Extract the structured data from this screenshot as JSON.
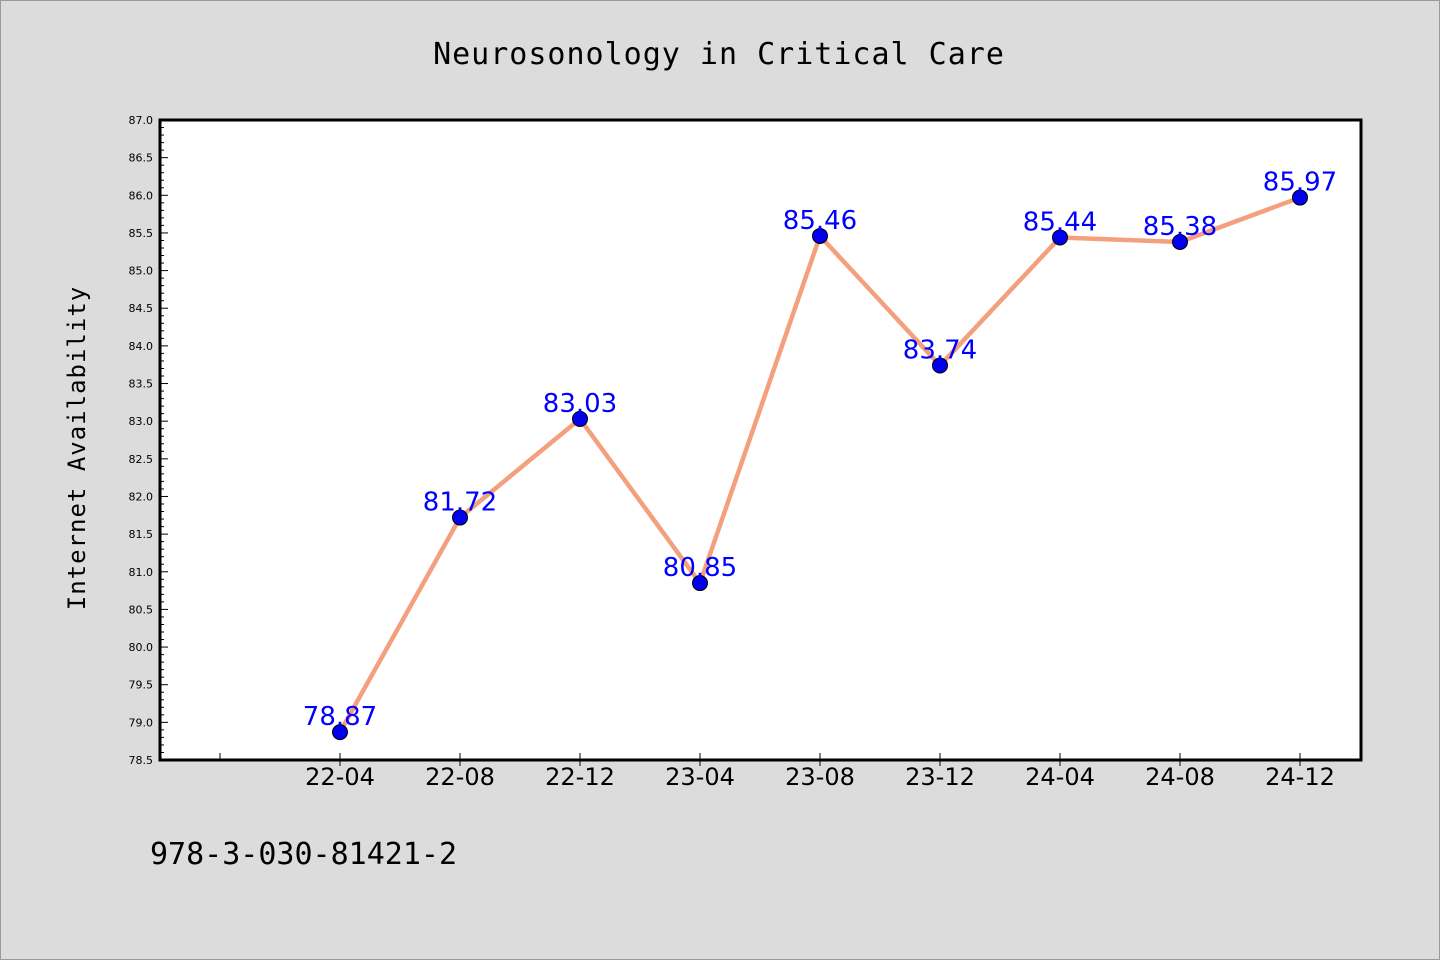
{
  "chart_data": {
    "type": "line",
    "title": "Neurosonology in Critical Care",
    "xlabel": "",
    "ylabel": "Internet Availability",
    "categories": [
      "22-04",
      "22-08",
      "22-12",
      "23-04",
      "23-08",
      "23-12",
      "24-04",
      "24-08",
      "24-12"
    ],
    "series": [
      {
        "values": [
          78.87,
          81.72,
          83.03,
          80.85,
          85.46,
          83.74,
          85.44,
          85.38,
          85.97
        ],
        "line_color": "#f4a07f",
        "marker_color": "#0000ee",
        "label_color": "#0000ff"
      }
    ],
    "ylim": [
      78.5,
      87.0
    ],
    "ytick_step": 0.5,
    "grid": false,
    "legend": "none",
    "data_labels": true
  },
  "footnote": "978-3-030-81421-2"
}
